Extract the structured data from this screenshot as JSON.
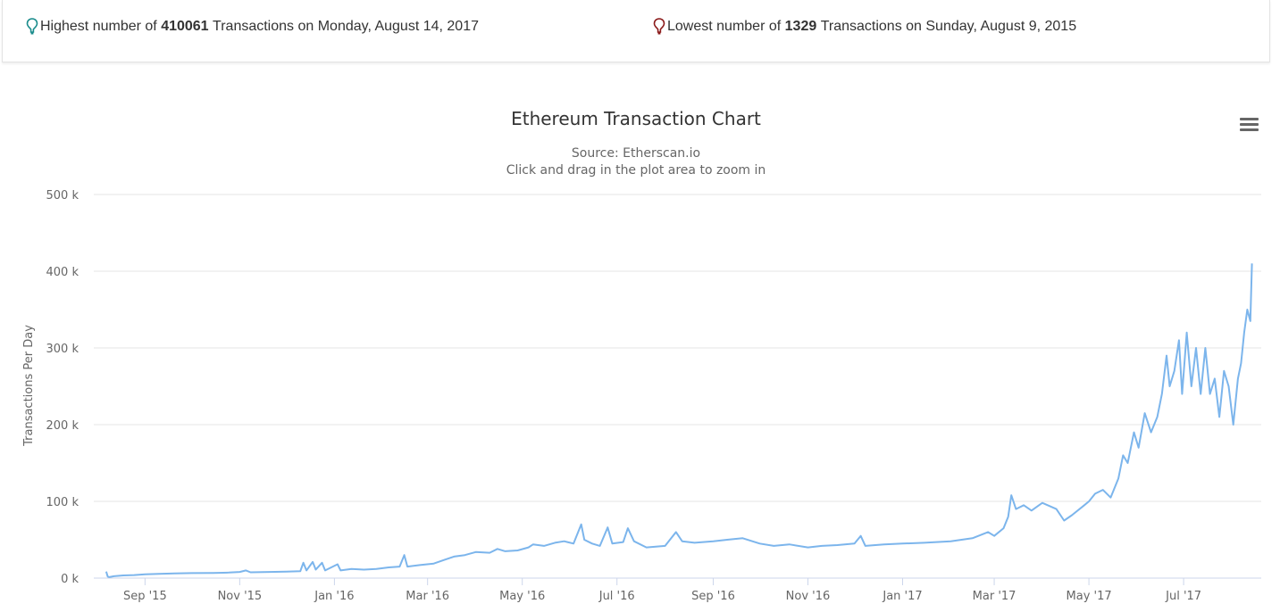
{
  "stats": {
    "high": {
      "prefix": "Highest number of",
      "value": "410061",
      "suffix": "Transactions on Monday, August 14, 2017",
      "icon": "map-pin-icon",
      "color": "#1a8c8c"
    },
    "low": {
      "prefix": "Lowest number of",
      "value": "1329",
      "suffix": "Transactions on Sunday, August 9, 2015",
      "icon": "map-pin-icon",
      "color": "#8b1a1a"
    }
  },
  "colors": {
    "line": "#7cb5ec",
    "grid": "#e6e6e6",
    "axis": "#ccd6eb",
    "text": "#666666",
    "title": "#333333"
  },
  "chart_data": {
    "type": "line",
    "title": "Ethereum Transaction Chart",
    "subtitle_line1": "Source: Etherscan.io",
    "subtitle_line2": "Click and drag in the plot area to zoom in",
    "ylabel": "Transactions Per Day",
    "xlabel": "",
    "ylim": [
      0,
      500000
    ],
    "xlim": [
      "2015-07-30",
      "2017-08-20"
    ],
    "y_ticks": [
      {
        "value": 0,
        "label": "0 k"
      },
      {
        "value": 100000,
        "label": "100 k"
      },
      {
        "value": 200000,
        "label": "200 k"
      },
      {
        "value": 300000,
        "label": "300 k"
      },
      {
        "value": 400000,
        "label": "400 k"
      },
      {
        "value": 500000,
        "label": "500 k"
      }
    ],
    "x_ticks": [
      {
        "date": "2015-09-01",
        "label": "Sep '15"
      },
      {
        "date": "2015-11-01",
        "label": "Nov '15"
      },
      {
        "date": "2016-01-01",
        "label": "Jan '16"
      },
      {
        "date": "2016-03-01",
        "label": "Mar '16"
      },
      {
        "date": "2016-05-01",
        "label": "May '16"
      },
      {
        "date": "2016-07-01",
        "label": "Jul '16"
      },
      {
        "date": "2016-09-01",
        "label": "Sep '16"
      },
      {
        "date": "2016-11-01",
        "label": "Nov '16"
      },
      {
        "date": "2017-01-01",
        "label": "Jan '17"
      },
      {
        "date": "2017-03-01",
        "label": "Mar '17"
      },
      {
        "date": "2017-05-01",
        "label": "May '17"
      },
      {
        "date": "2017-07-01",
        "label": "Jul '17"
      }
    ],
    "grid": true,
    "legend": "none",
    "series": [
      {
        "points": [
          [
            "2015-08-07",
            8500
          ],
          [
            "2015-08-08",
            2000
          ],
          [
            "2015-08-09",
            1329
          ],
          [
            "2015-08-12",
            2500
          ],
          [
            "2015-08-18",
            3500
          ],
          [
            "2015-08-25",
            4000
          ],
          [
            "2015-09-01",
            5000
          ],
          [
            "2015-09-10",
            5500
          ],
          [
            "2015-09-20",
            6000
          ],
          [
            "2015-10-01",
            6500
          ],
          [
            "2015-10-15",
            6800
          ],
          [
            "2015-10-25",
            7200
          ],
          [
            "2015-11-01",
            8000
          ],
          [
            "2015-11-05",
            10000
          ],
          [
            "2015-11-08",
            7500
          ],
          [
            "2015-11-20",
            8000
          ],
          [
            "2015-12-01",
            8500
          ],
          [
            "2015-12-10",
            9000
          ],
          [
            "2015-12-12",
            20000
          ],
          [
            "2015-12-14",
            10000
          ],
          [
            "2015-12-18",
            21000
          ],
          [
            "2015-12-20",
            11000
          ],
          [
            "2015-12-24",
            20000
          ],
          [
            "2015-12-26",
            10000
          ],
          [
            "2016-01-03",
            18000
          ],
          [
            "2016-01-05",
            10000
          ],
          [
            "2016-01-12",
            12000
          ],
          [
            "2016-01-20",
            11000
          ],
          [
            "2016-01-28",
            12000
          ],
          [
            "2016-02-05",
            14000
          ],
          [
            "2016-02-12",
            15000
          ],
          [
            "2016-02-15",
            30000
          ],
          [
            "2016-02-17",
            15000
          ],
          [
            "2016-02-25",
            17000
          ],
          [
            "2016-03-05",
            19000
          ],
          [
            "2016-03-12",
            24000
          ],
          [
            "2016-03-18",
            28000
          ],
          [
            "2016-03-25",
            30000
          ],
          [
            "2016-04-01",
            34000
          ],
          [
            "2016-04-10",
            33000
          ],
          [
            "2016-04-15",
            38000
          ],
          [
            "2016-04-20",
            35000
          ],
          [
            "2016-04-28",
            36000
          ],
          [
            "2016-05-05",
            40000
          ],
          [
            "2016-05-08",
            44000
          ],
          [
            "2016-05-15",
            42000
          ],
          [
            "2016-05-22",
            46000
          ],
          [
            "2016-05-28",
            48000
          ],
          [
            "2016-06-03",
            45000
          ],
          [
            "2016-06-08",
            70000
          ],
          [
            "2016-06-10",
            50000
          ],
          [
            "2016-06-15",
            45000
          ],
          [
            "2016-06-20",
            42000
          ],
          [
            "2016-06-25",
            66000
          ],
          [
            "2016-06-28",
            45000
          ],
          [
            "2016-07-05",
            47000
          ],
          [
            "2016-07-08",
            65000
          ],
          [
            "2016-07-12",
            48000
          ],
          [
            "2016-07-20",
            40000
          ],
          [
            "2016-08-01",
            42000
          ],
          [
            "2016-08-08",
            60000
          ],
          [
            "2016-08-12",
            48000
          ],
          [
            "2016-08-20",
            46000
          ],
          [
            "2016-09-01",
            48000
          ],
          [
            "2016-09-10",
            50000
          ],
          [
            "2016-09-20",
            52000
          ],
          [
            "2016-10-01",
            45000
          ],
          [
            "2016-10-10",
            42000
          ],
          [
            "2016-10-20",
            44000
          ],
          [
            "2016-11-01",
            40000
          ],
          [
            "2016-11-10",
            42000
          ],
          [
            "2016-11-20",
            43000
          ],
          [
            "2016-12-01",
            45000
          ],
          [
            "2016-12-05",
            55000
          ],
          [
            "2016-12-08",
            42000
          ],
          [
            "2016-12-20",
            44000
          ],
          [
            "2017-01-01",
            45000
          ],
          [
            "2017-01-15",
            46000
          ],
          [
            "2017-02-01",
            48000
          ],
          [
            "2017-02-15",
            52000
          ],
          [
            "2017-02-25",
            60000
          ],
          [
            "2017-03-01",
            55000
          ],
          [
            "2017-03-07",
            65000
          ],
          [
            "2017-03-10",
            80000
          ],
          [
            "2017-03-12",
            108000
          ],
          [
            "2017-03-15",
            90000
          ],
          [
            "2017-03-20",
            95000
          ],
          [
            "2017-03-25",
            88000
          ],
          [
            "2017-04-01",
            98000
          ],
          [
            "2017-04-10",
            90000
          ],
          [
            "2017-04-15",
            75000
          ],
          [
            "2017-04-20",
            82000
          ],
          [
            "2017-04-28",
            95000
          ],
          [
            "2017-05-01",
            100000
          ],
          [
            "2017-05-05",
            110000
          ],
          [
            "2017-05-10",
            115000
          ],
          [
            "2017-05-15",
            105000
          ],
          [
            "2017-05-20",
            130000
          ],
          [
            "2017-05-23",
            160000
          ],
          [
            "2017-05-26",
            150000
          ],
          [
            "2017-05-30",
            190000
          ],
          [
            "2017-06-02",
            170000
          ],
          [
            "2017-06-06",
            215000
          ],
          [
            "2017-06-10",
            190000
          ],
          [
            "2017-06-14",
            210000
          ],
          [
            "2017-06-17",
            240000
          ],
          [
            "2017-06-20",
            290000
          ],
          [
            "2017-06-22",
            250000
          ],
          [
            "2017-06-25",
            270000
          ],
          [
            "2017-06-28",
            310000
          ],
          [
            "2017-06-30",
            240000
          ],
          [
            "2017-07-03",
            320000
          ],
          [
            "2017-07-06",
            250000
          ],
          [
            "2017-07-09",
            300000
          ],
          [
            "2017-07-12",
            240000
          ],
          [
            "2017-07-15",
            300000
          ],
          [
            "2017-07-18",
            240000
          ],
          [
            "2017-07-21",
            260000
          ],
          [
            "2017-07-24",
            210000
          ],
          [
            "2017-07-27",
            270000
          ],
          [
            "2017-07-30",
            250000
          ],
          [
            "2017-08-02",
            200000
          ],
          [
            "2017-08-05",
            260000
          ],
          [
            "2017-08-07",
            280000
          ],
          [
            "2017-08-09",
            320000
          ],
          [
            "2017-08-11",
            350000
          ],
          [
            "2017-08-13",
            335000
          ],
          [
            "2017-08-14",
            410061
          ]
        ]
      }
    ]
  }
}
